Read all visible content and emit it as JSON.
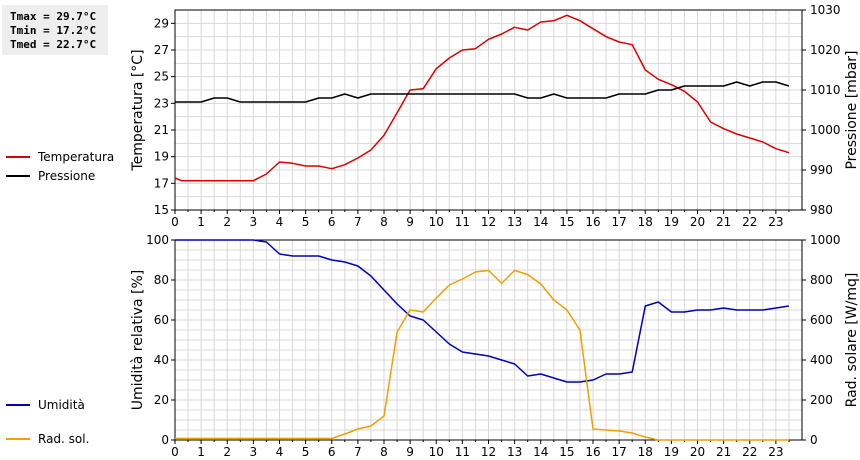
{
  "stats": {
    "tmax": "Tmax = 29.7°C",
    "tmin": "Tmin = 17.2°C",
    "tmed": "Tmed = 22.7°C"
  },
  "colors": {
    "temperature": "#dd0000",
    "pressure": "#000000",
    "humidity": "#0000bb",
    "solar": "#f0a000",
    "grid": "#d8d8d8",
    "stats_bg": "#eeeeee"
  },
  "chart_data": [
    {
      "type": "line",
      "x_ticks": [
        "0",
        "1",
        "2",
        "3",
        "4",
        "5",
        "6",
        "7",
        "8",
        "9",
        "10",
        "11",
        "12",
        "13",
        "14",
        "15",
        "16",
        "17",
        "18",
        "19",
        "20",
        "21",
        "22",
        "23"
      ],
      "xlim": [
        0,
        24
      ],
      "ylabel": "Temperatura [°C]",
      "ylim": [
        15,
        30
      ],
      "y_ticks": [
        "15",
        "17",
        "19",
        "21",
        "23",
        "25",
        "27",
        "29"
      ],
      "y2label": "Pressione [mbar]",
      "y2lim": [
        980,
        1030
      ],
      "y2_ticks": [
        "980",
        "990",
        "1000",
        "1010",
        "1020",
        "1030"
      ],
      "grid": true,
      "legend_position": "left",
      "series": [
        {
          "name": "Temperatura",
          "axis": "left",
          "color": "#dd0000",
          "points": [
            [
              0,
              17.4
            ],
            [
              0.25,
              17.2
            ],
            [
              0.5,
              17.2
            ],
            [
              1,
              17.2
            ],
            [
              1.5,
              17.2
            ],
            [
              2,
              17.2
            ],
            [
              2.5,
              17.2
            ],
            [
              3,
              17.2
            ],
            [
              3.5,
              17.7
            ],
            [
              4,
              18.6
            ],
            [
              4.5,
              18.5
            ],
            [
              5,
              18.3
            ],
            [
              5.5,
              18.3
            ],
            [
              6,
              18.1
            ],
            [
              6.5,
              18.4
            ],
            [
              7,
              18.9
            ],
            [
              7.5,
              19.5
            ],
            [
              8,
              20.6
            ],
            [
              8.5,
              22.3
            ],
            [
              9,
              24.0
            ],
            [
              9.5,
              24.1
            ],
            [
              10,
              25.6
            ],
            [
              10.5,
              26.4
            ],
            [
              11,
              27.0
            ],
            [
              11.5,
              27.1
            ],
            [
              12,
              27.8
            ],
            [
              12.5,
              28.2
            ],
            [
              13,
              28.7
            ],
            [
              13.5,
              28.5
            ],
            [
              14,
              29.1
            ],
            [
              14.5,
              29.2
            ],
            [
              15,
              29.6
            ],
            [
              15.5,
              29.2
            ],
            [
              16,
              28.6
            ],
            [
              16.5,
              28.0
            ],
            [
              17,
              27.6
            ],
            [
              17.5,
              27.4
            ],
            [
              18,
              25.5
            ],
            [
              18.5,
              24.8
            ],
            [
              19,
              24.4
            ],
            [
              19.5,
              23.9
            ],
            [
              20,
              23.1
            ],
            [
              20.5,
              21.6
            ],
            [
              21,
              21.1
            ],
            [
              21.5,
              20.7
            ],
            [
              22,
              20.4
            ],
            [
              22.5,
              20.1
            ],
            [
              23,
              19.6
            ],
            [
              23.5,
              19.3
            ]
          ]
        },
        {
          "name": "Pressione",
          "axis": "right",
          "color": "#000000",
          "points": [
            [
              0,
              1007
            ],
            [
              1,
              1007
            ],
            [
              1.5,
              1008
            ],
            [
              2,
              1008
            ],
            [
              2.5,
              1007
            ],
            [
              3,
              1007
            ],
            [
              4,
              1007
            ],
            [
              4.5,
              1007
            ],
            [
              5,
              1007
            ],
            [
              5.5,
              1008
            ],
            [
              6,
              1008
            ],
            [
              6.5,
              1009
            ],
            [
              7,
              1008
            ],
            [
              7.5,
              1009
            ],
            [
              8,
              1009
            ],
            [
              8.5,
              1009
            ],
            [
              9,
              1009
            ],
            [
              10,
              1009
            ],
            [
              11,
              1009
            ],
            [
              12,
              1009
            ],
            [
              13,
              1009
            ],
            [
              13.5,
              1008
            ],
            [
              14,
              1008
            ],
            [
              14.5,
              1009
            ],
            [
              15,
              1008
            ],
            [
              16,
              1008
            ],
            [
              16.5,
              1008
            ],
            [
              17,
              1009
            ],
            [
              18,
              1009
            ],
            [
              18.5,
              1010
            ],
            [
              19,
              1010
            ],
            [
              19.5,
              1011
            ],
            [
              20,
              1011
            ],
            [
              21,
              1011
            ],
            [
              21.5,
              1012
            ],
            [
              22,
              1011
            ],
            [
              22.5,
              1012
            ],
            [
              23,
              1012
            ],
            [
              23.5,
              1011
            ]
          ]
        }
      ]
    },
    {
      "type": "line",
      "x_ticks": [
        "0",
        "1",
        "2",
        "3",
        "4",
        "5",
        "6",
        "7",
        "8",
        "9",
        "10",
        "11",
        "12",
        "13",
        "14",
        "15",
        "16",
        "17",
        "18",
        "19",
        "20",
        "21",
        "22",
        "23"
      ],
      "xlim": [
        0,
        24
      ],
      "ylabel": "Umidità relativa [%]",
      "ylim": [
        0,
        100
      ],
      "y_ticks": [
        "0",
        "20",
        "40",
        "60",
        "80",
        "100"
      ],
      "y2label": "Rad. solare [W/mq]",
      "y2lim": [
        0,
        1000
      ],
      "y2_ticks": [
        "0",
        "200",
        "400",
        "600",
        "800",
        "1000"
      ],
      "grid": true,
      "legend_position": "left",
      "series": [
        {
          "name": "Umidità",
          "axis": "left",
          "color": "#0000bb",
          "points": [
            [
              0,
              100
            ],
            [
              3,
              100
            ],
            [
              3.5,
              99
            ],
            [
              4,
              93
            ],
            [
              4.5,
              92
            ],
            [
              5,
              92
            ],
            [
              5.5,
              92
            ],
            [
              6,
              90
            ],
            [
              6.5,
              89
            ],
            [
              7,
              87
            ],
            [
              7.5,
              82
            ],
            [
              8,
              75
            ],
            [
              8.5,
              68
            ],
            [
              9,
              62
            ],
            [
              9.5,
              60
            ],
            [
              10,
              54
            ],
            [
              10.5,
              48
            ],
            [
              11,
              44
            ],
            [
              11.5,
              43
            ],
            [
              12,
              42
            ],
            [
              12.5,
              40
            ],
            [
              13,
              38
            ],
            [
              13.5,
              32
            ],
            [
              14,
              33
            ],
            [
              14.5,
              31
            ],
            [
              15,
              29
            ],
            [
              15.5,
              29
            ],
            [
              16,
              30
            ],
            [
              16.5,
              33
            ],
            [
              17,
              33
            ],
            [
              17.5,
              34
            ],
            [
              18,
              67
            ],
            [
              18.5,
              69
            ],
            [
              19,
              64
            ],
            [
              19.5,
              64
            ],
            [
              20,
              65
            ],
            [
              20.5,
              65
            ],
            [
              21,
              66
            ],
            [
              21.5,
              65
            ],
            [
              22,
              65
            ],
            [
              22.5,
              65
            ],
            [
              23,
              66
            ],
            [
              23.5,
              67
            ]
          ]
        },
        {
          "name": "Rad. sol.",
          "axis": "right",
          "color": "#f0a000",
          "points": [
            [
              0,
              8
            ],
            [
              6,
              8
            ],
            [
              6.5,
              30
            ],
            [
              7,
              55
            ],
            [
              7.5,
              70
            ],
            [
              8,
              120
            ],
            [
              8.5,
              540
            ],
            [
              9,
              650
            ],
            [
              9.5,
              640
            ],
            [
              10,
              710
            ],
            [
              10.5,
              775
            ],
            [
              11,
              805
            ],
            [
              11.5,
              840
            ],
            [
              12,
              848
            ],
            [
              12.5,
              783
            ],
            [
              13,
              848
            ],
            [
              13.5,
              827
            ],
            [
              14,
              780
            ],
            [
              14.5,
              700
            ],
            [
              15,
              650
            ],
            [
              15.5,
              550
            ],
            [
              16,
              55
            ],
            [
              16.5,
              50
            ],
            [
              17,
              45
            ],
            [
              17.5,
              35
            ],
            [
              18,
              15
            ],
            [
              18.5,
              0
            ],
            [
              19,
              0
            ],
            [
              20,
              0
            ],
            [
              21,
              0
            ],
            [
              22,
              0
            ],
            [
              23,
              0
            ],
            [
              23.5,
              0
            ]
          ]
        }
      ]
    }
  ]
}
